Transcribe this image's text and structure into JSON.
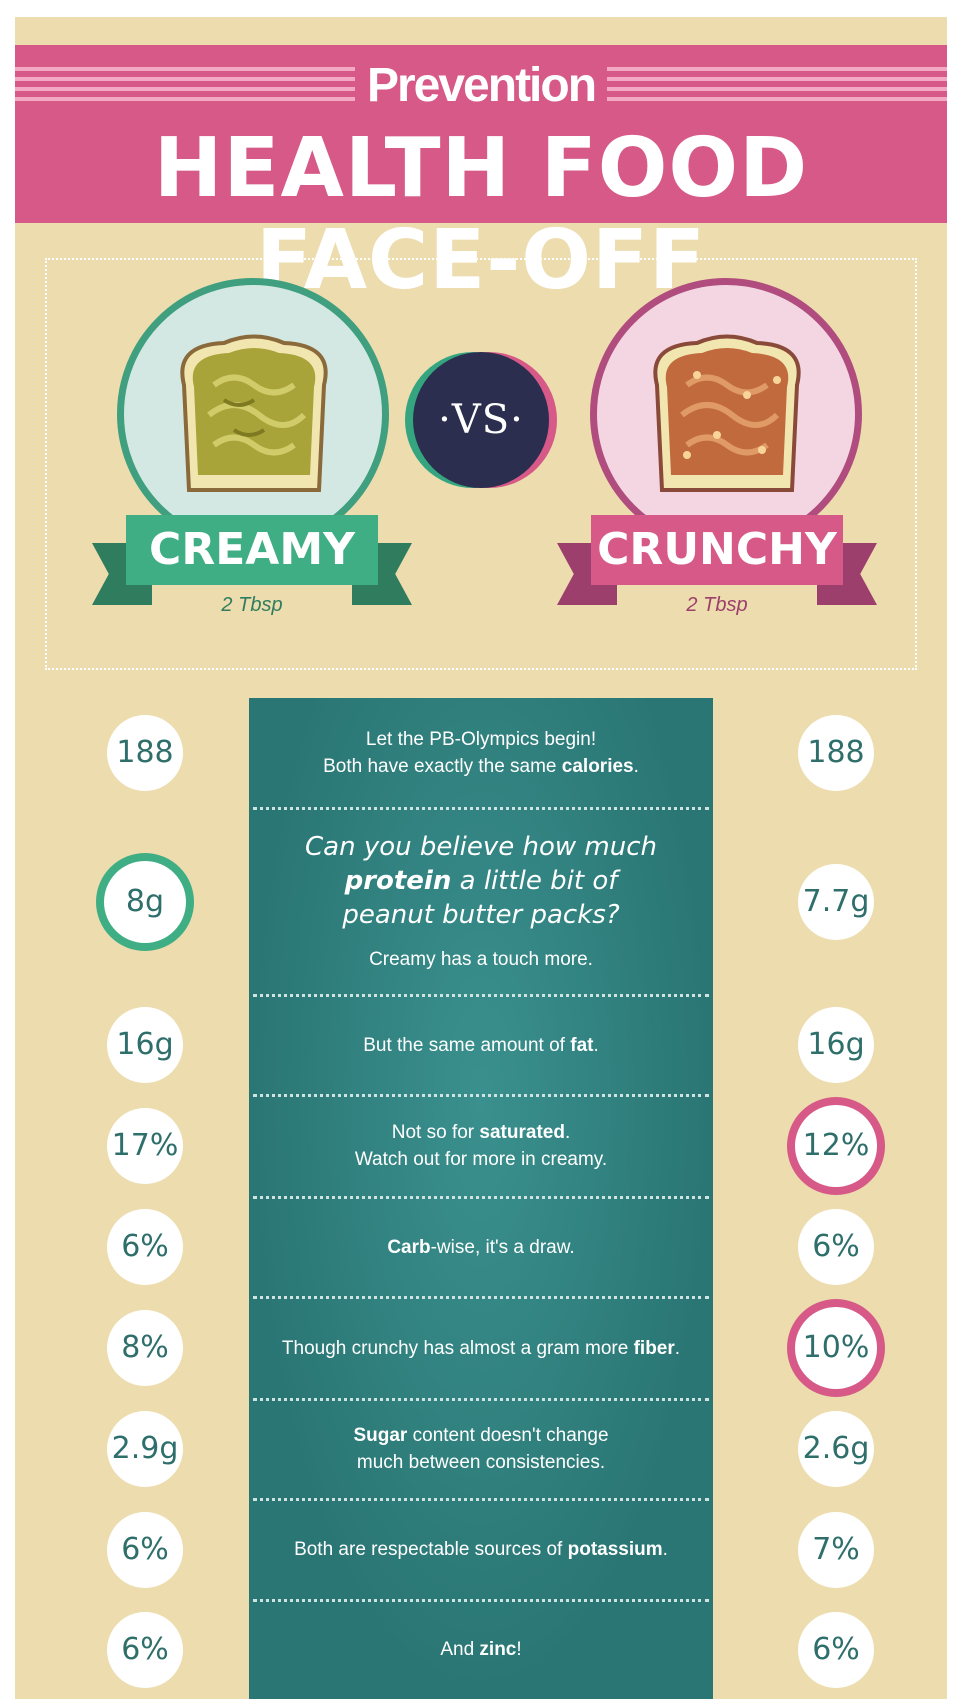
{
  "header": {
    "brand": "Prevention",
    "title": "HEALTH FOOD FACE-OFF"
  },
  "contenders": {
    "left": {
      "name": "CREAMY",
      "serving": "2 Tbsp",
      "color": "#3fae84"
    },
    "vs": "·VS·",
    "right": {
      "name": "CRUNCHY",
      "serving": "2 Tbsp",
      "color": "#d65987"
    }
  },
  "rows": [
    {
      "left": "188",
      "right": "188",
      "lines": [
        [
          "Let the PB-Olympics begin!"
        ],
        [
          "Both have exactly the same ",
          "calories",
          "."
        ]
      ],
      "highlight": "none"
    },
    {
      "left": "8g",
      "right": "7.7g",
      "question": [
        "Can you believe how much",
        "protein",
        " a little bit of",
        "peanut butter packs?"
      ],
      "lines": [
        [
          "Creamy has a touch more."
        ]
      ],
      "highlight": "left"
    },
    {
      "left": "16g",
      "right": "16g",
      "lines": [
        [
          "But the same amount of ",
          "fat",
          "."
        ]
      ],
      "highlight": "none"
    },
    {
      "left": "17%",
      "right": "12%",
      "lines": [
        [
          "Not so for ",
          "saturated",
          "."
        ],
        [
          "Watch out for more in creamy."
        ]
      ],
      "highlight": "right"
    },
    {
      "left": "6%",
      "right": "6%",
      "lines": [
        [
          "",
          "Carb",
          "-wise, it's a draw."
        ]
      ],
      "highlight": "none"
    },
    {
      "left": "8%",
      "right": "10%",
      "lines": [
        [
          "Though crunchy has almost a gram more ",
          "fiber",
          "."
        ]
      ],
      "highlight": "right"
    },
    {
      "left": "2.9g",
      "right": "2.6g",
      "lines": [
        [
          "",
          "Sugar",
          " content doesn't change"
        ],
        [
          "much between consistencies."
        ]
      ],
      "highlight": "none"
    },
    {
      "left": "6%",
      "right": "7%",
      "lines": [
        [
          "Both are respectable sources of ",
          "potassium",
          "."
        ]
      ],
      "highlight": "none"
    },
    {
      "left": "6%",
      "right": "6%",
      "lines": [
        [
          "And ",
          "zinc",
          "!"
        ]
      ],
      "highlight": "none"
    }
  ]
}
